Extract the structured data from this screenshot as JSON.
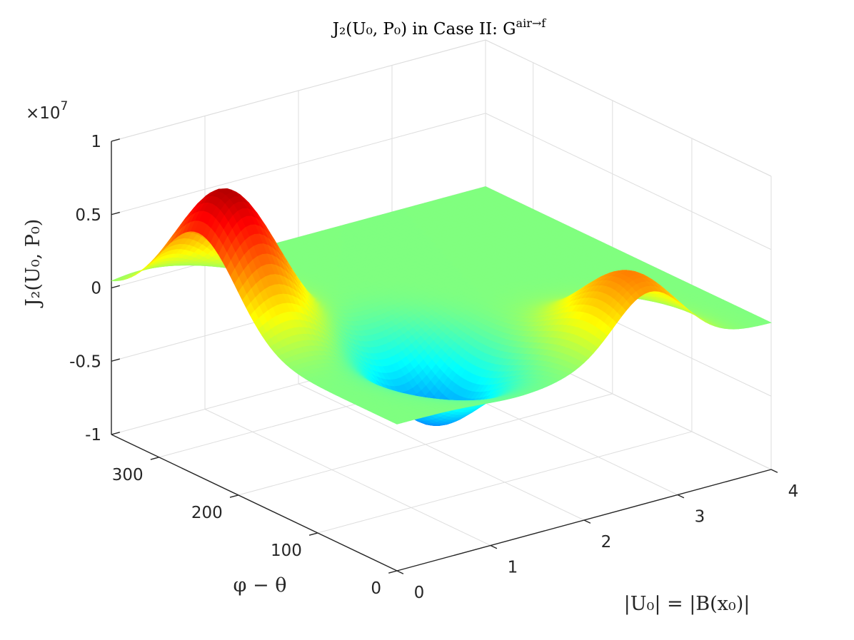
{
  "chart_data": {
    "type": "surface",
    "title": "J₂(U₀, P₀) in Case II: G^{air→f}",
    "title_main": "J₂(U₀, P₀) in Case II: G",
    "title_sup": "air→f",
    "xlabel": "|U₀| = |B(x₀)|",
    "ylabel": "φ − θ",
    "zlabel": "J₂(U₀, P₀)",
    "z_multiplier": "×10",
    "z_exponent": "7",
    "xlim": [
      0,
      4
    ],
    "ylim": [
      0,
      360
    ],
    "zlim": [
      -1,
      1
    ],
    "x_ticks": [
      "0",
      "1",
      "2",
      "3",
      "4"
    ],
    "y_ticks": [
      "0",
      "100",
      "200",
      "300"
    ],
    "z_ticks": [
      "-1",
      "-0.5",
      "0",
      "0.5",
      "1"
    ],
    "colormap": "jet",
    "grid": true,
    "surface_features": [
      {
        "kind": "peak",
        "x": 0.3,
        "y": 250,
        "z": 0.9
      },
      {
        "kind": "trough",
        "x": 1.3,
        "y": 110,
        "z": -0.5
      },
      {
        "kind": "peak",
        "x": 2.7,
        "y": 25,
        "z": 0.5
      }
    ]
  }
}
